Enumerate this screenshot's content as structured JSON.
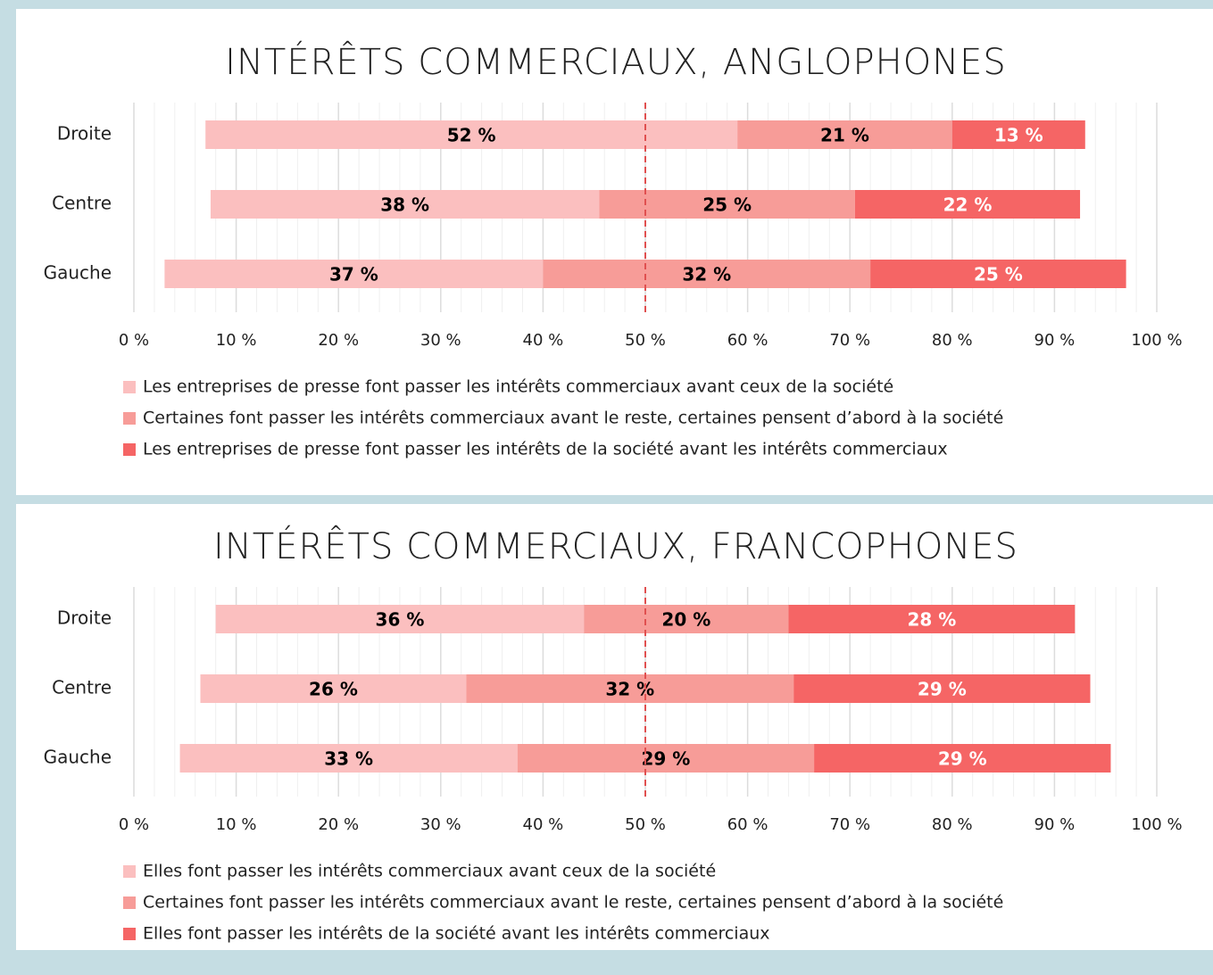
{
  "chart_data": [
    {
      "type": "centered_stacked_bar",
      "title": "INTÉRÊTS COMMERCIAUX, ANGLOPHONES",
      "categories": [
        "Droite",
        "Centre",
        "Gauche"
      ],
      "series": [
        {
          "name": "Les entreprises de presse font passer les intérêts commerciaux avant ceux de la société",
          "color": "#fbbfbf",
          "label_color": "#000000",
          "values": [
            52,
            38,
            37
          ],
          "value_labels": [
            "52 %",
            "38 %",
            "37 %"
          ]
        },
        {
          "name": "Certaines font passer les intérêts commerciaux avant le reste, certaines pensent d’abord à la société",
          "color": "#f79c98",
          "label_color": "#000000",
          "values": [
            21,
            25,
            32
          ],
          "value_labels": [
            "21 %",
            "25 %",
            "32 %"
          ]
        },
        {
          "name": "Les entreprises de presse font passer les intérêts de la société avant les intérêts commerciaux",
          "color": "#f56565",
          "label_color": "#ffffff",
          "values": [
            13,
            22,
            25
          ],
          "value_labels": [
            "13 %",
            "22 %",
            "25 %"
          ]
        }
      ],
      "xlim": [
        0,
        100
      ],
      "xticks": [
        {
          "value": 0,
          "label": "0 %"
        },
        {
          "value": 10,
          "label": "10 %"
        },
        {
          "value": 20,
          "label": "20 %"
        },
        {
          "value": 30,
          "label": "30 %"
        },
        {
          "value": 40,
          "label": "40 %"
        },
        {
          "value": 50,
          "label": "50 %"
        },
        {
          "value": 60,
          "label": "60 %"
        },
        {
          "value": 70,
          "label": "70 %"
        },
        {
          "value": 80,
          "label": "80 %"
        },
        {
          "value": 90,
          "label": "90 %"
        },
        {
          "value": 100,
          "label": "100 %"
        }
      ],
      "reference_line": 50,
      "grid": true,
      "legend": "bottom"
    },
    {
      "type": "centered_stacked_bar",
      "title": "INTÉRÊTS COMMERCIAUX, FRANCOPHONES",
      "categories": [
        "Droite",
        "Centre",
        "Gauche"
      ],
      "series": [
        {
          "name": "Elles font passer les intérêts commerciaux avant ceux de la société",
          "color": "#fbbfbf",
          "label_color": "#000000",
          "values": [
            36,
            26,
            33
          ],
          "value_labels": [
            "36 %",
            "26 %",
            "33 %"
          ]
        },
        {
          "name": "Certaines font passer les intérêts commerciaux avant le reste, certaines pensent d’abord à la société",
          "color": "#f79c98",
          "label_color": "#000000",
          "values": [
            20,
            32,
            29
          ],
          "value_labels": [
            "20 %",
            "32 %",
            "29 %"
          ]
        },
        {
          "name": "Elles font passer les intérêts de la société avant les intérêts commerciaux",
          "color": "#f56565",
          "label_color": "#ffffff",
          "values": [
            28,
            29,
            29
          ],
          "value_labels": [
            "28 %",
            "29 %",
            "29 %"
          ]
        }
      ],
      "xlim": [
        0,
        100
      ],
      "xticks": [
        {
          "value": 0,
          "label": "0 %"
        },
        {
          "value": 10,
          "label": "10 %"
        },
        {
          "value": 20,
          "label": "20 %"
        },
        {
          "value": 30,
          "label": "30 %"
        },
        {
          "value": 40,
          "label": "40 %"
        },
        {
          "value": 50,
          "label": "50 %"
        },
        {
          "value": 60,
          "label": "60 %"
        },
        {
          "value": 70,
          "label": "70 %"
        },
        {
          "value": 80,
          "label": "80 %"
        },
        {
          "value": 90,
          "label": "90 %"
        },
        {
          "value": 100,
          "label": "100 %"
        }
      ],
      "reference_line": 50,
      "grid": true,
      "legend": "bottom"
    }
  ]
}
